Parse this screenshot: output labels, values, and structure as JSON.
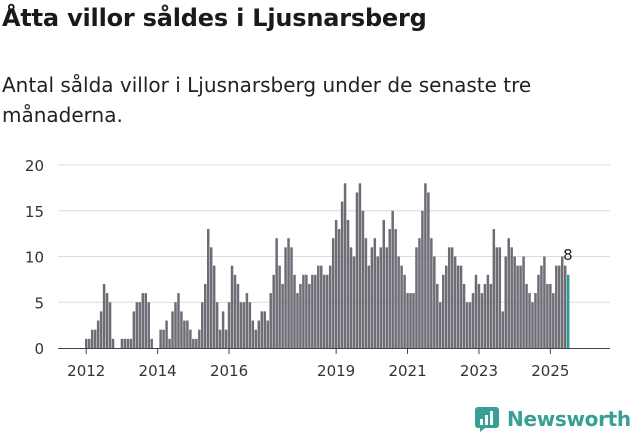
{
  "header": {
    "title": "Åtta villor såldes i Ljusnarsberg",
    "subtitle": "Antal sålda villor i Ljusnarsberg under de senaste tre månaderna."
  },
  "brand": {
    "name": "Newsworthy",
    "icon": "newsworthy-logo-icon",
    "color": "#36a095"
  },
  "chart_data": {
    "type": "bar",
    "title": "Åtta villor såldes i Ljusnarsberg",
    "subtitle": "Antal sålda villor i Ljusnarsberg under de senaste tre månaderna.",
    "xlabel": "",
    "ylabel": "",
    "ylim": [
      0,
      20
    ],
    "yticks": [
      0,
      5,
      10,
      15,
      20
    ],
    "xticks": [
      {
        "label": "2012",
        "index": 0
      },
      {
        "label": "2014",
        "index": 24
      },
      {
        "label": "2016",
        "index": 48
      },
      {
        "label": "2019",
        "index": 84
      },
      {
        "label": "2021",
        "index": 108
      },
      {
        "label": "2023",
        "index": 132
      },
      {
        "label": "2025",
        "index": 156
      }
    ],
    "bar_color": "#6e6c75",
    "highlight_color": "#2a9d8f",
    "highlight_label": "8",
    "period": "rolling three-month totals, monthly, 2012 to 2025",
    "values": [
      1,
      1,
      2,
      2,
      3,
      4,
      7,
      6,
      5,
      1,
      0,
      0,
      1,
      1,
      1,
      1,
      4,
      5,
      5,
      6,
      6,
      5,
      1,
      0,
      0,
      2,
      2,
      3,
      1,
      4,
      5,
      6,
      4,
      3,
      3,
      2,
      1,
      1,
      2,
      5,
      7,
      13,
      11,
      9,
      5,
      2,
      4,
      2,
      5,
      9,
      8,
      7,
      5,
      5,
      6,
      5,
      3,
      2,
      3,
      4,
      4,
      3,
      6,
      8,
      12,
      9,
      7,
      11,
      12,
      11,
      8,
      6,
      7,
      8,
      8,
      7,
      8,
      8,
      9,
      9,
      8,
      8,
      9,
      12,
      14,
      13,
      16,
      18,
      14,
      11,
      10,
      17,
      18,
      15,
      12,
      9,
      11,
      12,
      10,
      11,
      14,
      11,
      13,
      15,
      13,
      10,
      9,
      8,
      6,
      6,
      6,
      11,
      12,
      15,
      18,
      17,
      12,
      10,
      7,
      5,
      8,
      9,
      11,
      11,
      10,
      9,
      9,
      7,
      5,
      5,
      6,
      8,
      7,
      6,
      7,
      8,
      7,
      13,
      11,
      11,
      4,
      10,
      12,
      11,
      10,
      9,
      9,
      10,
      7,
      6,
      5,
      6,
      8,
      9,
      10,
      7,
      7,
      6,
      9,
      9,
      10,
      9,
      8
    ]
  }
}
